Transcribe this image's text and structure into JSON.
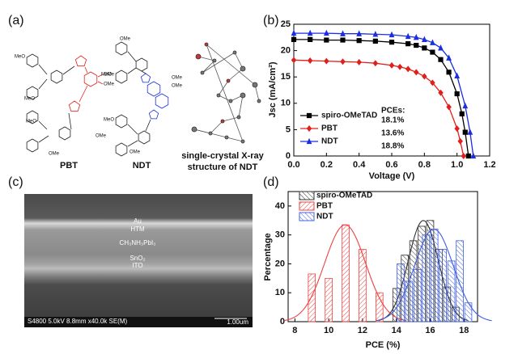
{
  "panel_a": {
    "label": "(a)",
    "pbt": {
      "name": "PBT",
      "atom_labels": [
        "MeO",
        "MeO",
        "OMe",
        "OMe",
        "MeO",
        "OMe",
        "OMe"
      ]
    },
    "ndt": {
      "name": "NDT",
      "atom_labels": [
        "OMe",
        "MeO",
        "OMe",
        "OMe",
        "MeO",
        "OMe"
      ]
    },
    "crystal": {
      "lines": [
        "single-crystal X-ray",
        "structure of NDT"
      ]
    }
  },
  "panel_c": {
    "label": "(c)",
    "layers": [
      "Au",
      "HTM",
      "CH₃NH₃PbI₃",
      "SnO₂",
      "ITO"
    ],
    "info": "S4800 5.0kV 8.8mm x40.0k SE(M)",
    "scale": "1.00um"
  },
  "chart_data": [
    {
      "type": "line",
      "panel_label": "(b)",
      "x_label": "Voltage (V)",
      "y_label": "Jsc (mA/cm²)",
      "xlim": [
        0,
        1.2
      ],
      "xticks": [
        {
          "value": 0,
          "label": "0.0"
        },
        0.2,
        0.4,
        0.6,
        0.8,
        {
          "value": 1,
          "label": "1.0"
        },
        1.2
      ],
      "ylim": [
        0,
        25
      ],
      "yticks": [
        0,
        5,
        10,
        15,
        20,
        25
      ],
      "legend": "lower left",
      "pce_title": "PCEs:",
      "series": [
        {
          "name": "spiro-OMeTAD",
          "color": "#000000",
          "marker": "square",
          "pce": "18.1%",
          "x": [
            0,
            0.1,
            0.2,
            0.3,
            0.4,
            0.5,
            0.6,
            0.7,
            0.75,
            0.8,
            0.85,
            0.9,
            0.95,
            1.0,
            1.03,
            1.05,
            1.07
          ],
          "values": [
            22.1,
            22.1,
            22.0,
            22.0,
            21.9,
            21.8,
            21.6,
            21.3,
            21.0,
            20.5,
            19.7,
            18.3,
            15.9,
            11.8,
            8.0,
            4.5,
            0
          ]
        },
        {
          "name": "PBT",
          "color": "#e0201c",
          "marker": "diamond",
          "pce": "13.6%",
          "x": [
            0,
            0.1,
            0.2,
            0.3,
            0.4,
            0.5,
            0.6,
            0.65,
            0.7,
            0.75,
            0.8,
            0.85,
            0.9,
            0.95,
            1.0,
            1.02,
            1.04
          ],
          "values": [
            18.2,
            18.1,
            18.0,
            17.9,
            17.8,
            17.6,
            17.2,
            16.9,
            16.5,
            15.9,
            15.1,
            13.9,
            12.0,
            9.3,
            5.2,
            2.8,
            0
          ]
        },
        {
          "name": "NDT",
          "color": "#1a2ee0",
          "marker": "triangle",
          "pce": "18.8%",
          "x": [
            0,
            0.1,
            0.2,
            0.3,
            0.4,
            0.5,
            0.6,
            0.7,
            0.75,
            0.8,
            0.85,
            0.9,
            0.95,
            1.0,
            1.05,
            1.08,
            1.1
          ],
          "values": [
            23.3,
            23.3,
            23.3,
            23.2,
            23.2,
            23.1,
            23.0,
            22.7,
            22.5,
            22.1,
            21.5,
            20.5,
            18.6,
            15.2,
            9.5,
            4.5,
            0
          ]
        }
      ]
    },
    {
      "type": "bar",
      "panel_label": "(d)",
      "x_label": "PCE (%)",
      "y_label": "Percentage",
      "xlim": [
        7.6,
        18.8
      ],
      "xticks": [
        8,
        10,
        12,
        14,
        16,
        18
      ],
      "ylim": [
        0,
        45
      ],
      "yticks": [
        0,
        10,
        20,
        30,
        40
      ],
      "legend": "upper left",
      "fit": true,
      "series": [
        {
          "name": "spiro-OMeTAD",
          "color": "#333333",
          "x": [
            14,
            14.5,
            15,
            15.5,
            16,
            16.5,
            17,
            17.5
          ],
          "values": [
            11.5,
            23,
            28,
            33,
            35,
            25,
            12,
            5
          ]
        },
        {
          "name": "PBT",
          "color": "#f04040",
          "x": [
            9,
            10,
            11,
            12,
            13
          ],
          "values": [
            16.5,
            15,
            33.5,
            25,
            10
          ]
        },
        {
          "name": "NDT",
          "color": "#4060e0",
          "x": [
            14.25,
            14.75,
            15.25,
            15.75,
            16.25,
            16.75,
            17.25,
            17.75,
            18.25
          ],
          "values": [
            20,
            14,
            18,
            30,
            32,
            25,
            21,
            28,
            6.5
          ]
        }
      ]
    }
  ]
}
